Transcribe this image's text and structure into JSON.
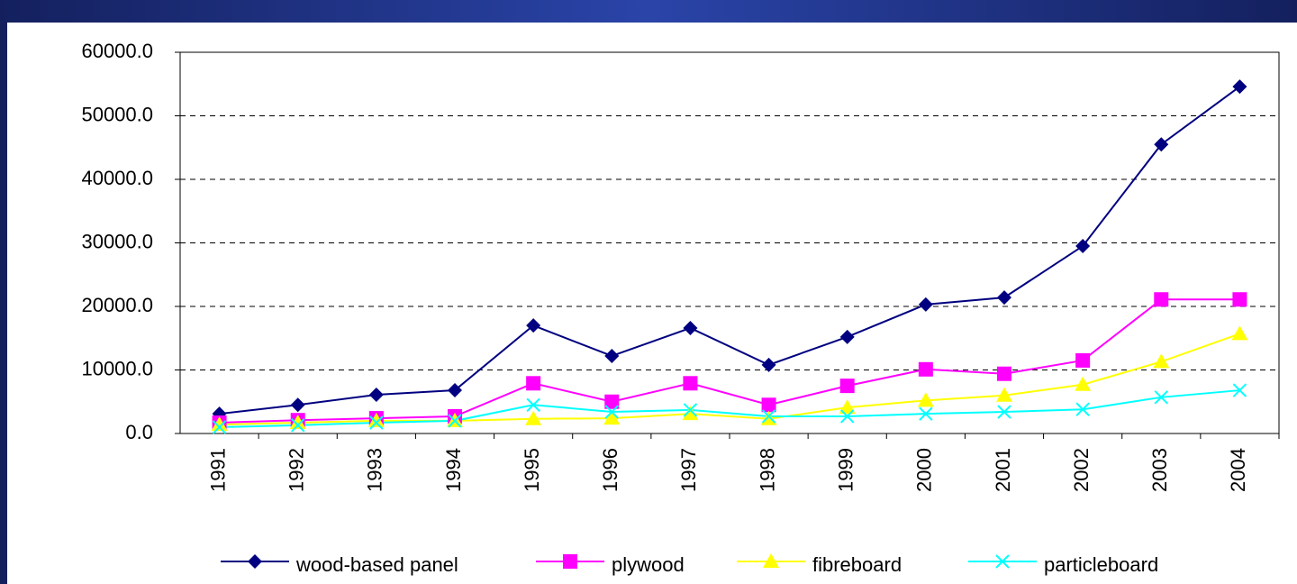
{
  "chart_data": {
    "type": "line",
    "categories": [
      "1991",
      "1992",
      "1993",
      "1994",
      "1995",
      "1996",
      "1997",
      "1998",
      "1999",
      "2000",
      "2001",
      "2002",
      "2003",
      "2004"
    ],
    "series": [
      {
        "name": "wood-based panel",
        "color": "#000080",
        "marker": "diamond",
        "values": [
          3100,
          4500,
          6100,
          6800,
          17000,
          12200,
          16600,
          10800,
          15200,
          20300,
          21400,
          29500,
          45500,
          54600
        ]
      },
      {
        "name": "plywood",
        "color": "#ff00ff",
        "marker": "square",
        "values": [
          1700,
          2100,
          2400,
          2700,
          7900,
          5000,
          7900,
          4500,
          7500,
          10100,
          9400,
          11500,
          21100,
          21100
        ]
      },
      {
        "name": "fibreboard",
        "color": "#ffff00",
        "marker": "triangle",
        "values": [
          1400,
          1700,
          2000,
          2000,
          2300,
          2400,
          3100,
          2300,
          4100,
          5200,
          6000,
          7700,
          11300,
          15700
        ]
      },
      {
        "name": "particleboard",
        "color": "#00ffff",
        "marker": "x",
        "values": [
          1000,
          1300,
          1700,
          2000,
          4500,
          3400,
          3700,
          2700,
          2700,
          3100,
          3400,
          3800,
          5700,
          6800
        ]
      }
    ],
    "ylim": [
      0,
      60000
    ],
    "yticks": [
      {
        "value": 0,
        "label": "0.0"
      },
      {
        "value": 10000,
        "label": "10000.0"
      },
      {
        "value": 20000,
        "label": "20000.0"
      },
      {
        "value": 30000,
        "label": "30000.0"
      },
      {
        "value": 40000,
        "label": "40000.0"
      },
      {
        "value": 50000,
        "label": "50000.0"
      },
      {
        "value": 60000,
        "label": "60000.0"
      }
    ],
    "grid": true,
    "legend": "bottom"
  }
}
